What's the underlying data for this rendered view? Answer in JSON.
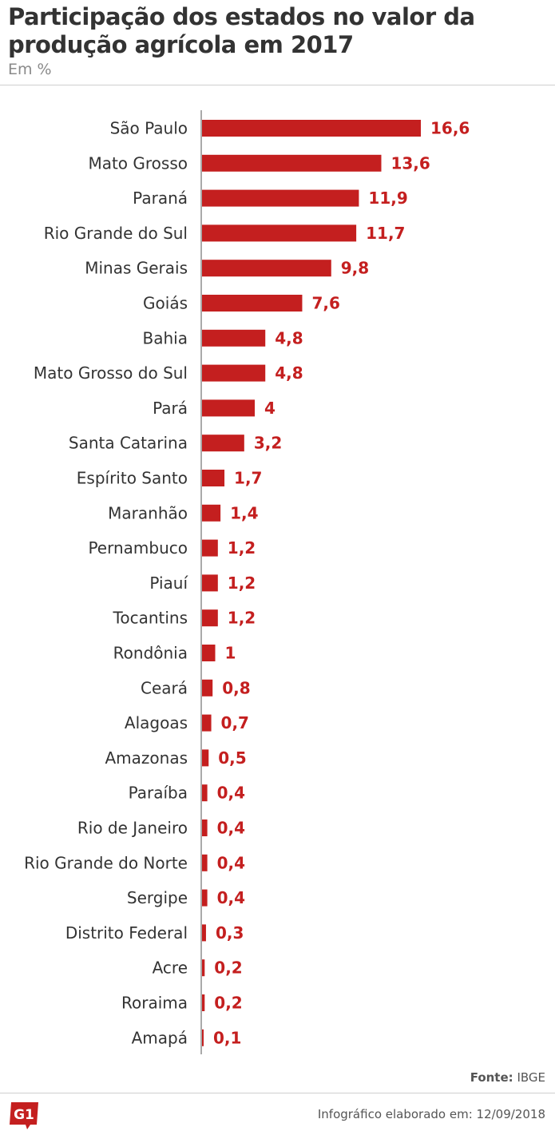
{
  "header": {
    "title": "Participação dos estados no valor da produção agrícola em 2017",
    "subtitle": "Em %"
  },
  "footer": {
    "source_label": "Fonte:",
    "source_value": "IBGE",
    "credit": "Infográfico elaborado em: 12/09/2018",
    "logo_text": "G1"
  },
  "colors": {
    "bar": "#c41f1f",
    "value_text": "#c41f1f",
    "logo": "#c41f1f"
  },
  "chart_data": {
    "type": "bar",
    "orientation": "horizontal",
    "title": "Participação dos estados no valor da produção agrícola em 2017",
    "subtitle": "Em %",
    "xlim": [
      0,
      16.6
    ],
    "grid": false,
    "categories": [
      "São Paulo",
      "Mato Grosso",
      "Paraná",
      "Rio Grande do Sul",
      "Minas Gerais",
      "Goiás",
      "Bahia",
      "Mato Grosso do Sul",
      "Pará",
      "Santa Catarina",
      "Espírito Santo",
      "Maranhão",
      "Pernambuco",
      "Piauí",
      "Tocantins",
      "Rondônia",
      "Ceará",
      "Alagoas",
      "Amazonas",
      "Paraíba",
      "Rio de Janeiro",
      "Rio Grande do Norte",
      "Sergipe",
      "Distrito Federal",
      "Acre",
      "Roraima",
      "Amapá"
    ],
    "values": [
      16.6,
      13.6,
      11.9,
      11.7,
      9.8,
      7.6,
      4.8,
      4.8,
      4,
      3.2,
      1.7,
      1.4,
      1.2,
      1.2,
      1.2,
      1,
      0.8,
      0.7,
      0.5,
      0.4,
      0.4,
      0.4,
      0.4,
      0.3,
      0.2,
      0.2,
      0.1
    ],
    "value_labels": [
      "16,6",
      "13,6",
      "11,9",
      "11,7",
      "9,8",
      "7,6",
      "4,8",
      "4,8",
      "4",
      "3,2",
      "1,7",
      "1,4",
      "1,2",
      "1,2",
      "1,2",
      "1",
      "0,8",
      "0,7",
      "0,5",
      "0,4",
      "0,4",
      "0,4",
      "0,4",
      "0,3",
      "0,2",
      "0,2",
      "0,1"
    ]
  }
}
